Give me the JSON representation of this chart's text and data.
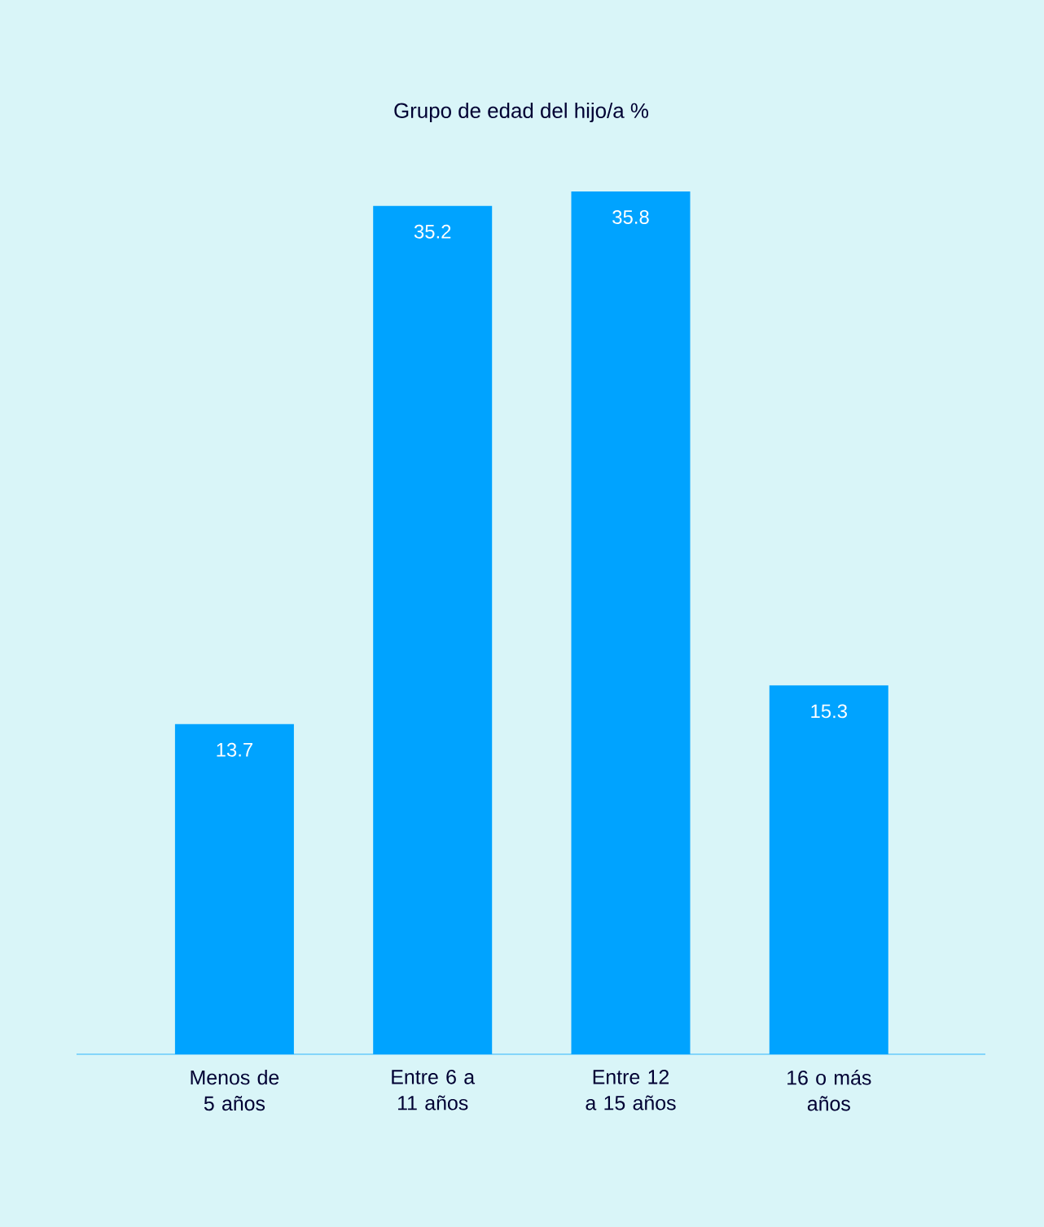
{
  "chart_data": {
    "type": "bar",
    "title": "Grupo de edad del hijo/a %",
    "categories": [
      "Menos de 5 años",
      "Entre 6 a 11 años",
      "Entre 12 a 15 años",
      "16 o más años"
    ],
    "values": [
      13.7,
      35.2,
      35.8,
      15.3
    ],
    "color": "#00a3ff",
    "data_labels": true
  }
}
